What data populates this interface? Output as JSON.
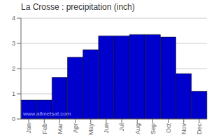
{
  "chart_data": {
    "type": "bar",
    "title": "La Crosse : precipitation (inch)",
    "categories": [
      "Jan",
      "Feb",
      "Mar",
      "Apr",
      "May",
      "Jun",
      "Jul",
      "Aug",
      "Sep",
      "Oct",
      "Nov",
      "Dec"
    ],
    "values": [
      0.75,
      0.75,
      1.65,
      2.45,
      2.75,
      3.3,
      3.3,
      3.35,
      3.35,
      3.25,
      1.8,
      1.1
    ],
    "color": "#0000CC",
    "ylim": [
      0,
      4
    ],
    "yticks": [
      0,
      1,
      2,
      3,
      4
    ],
    "grid": true,
    "annotations": [
      "www.allmetsat.com"
    ]
  }
}
